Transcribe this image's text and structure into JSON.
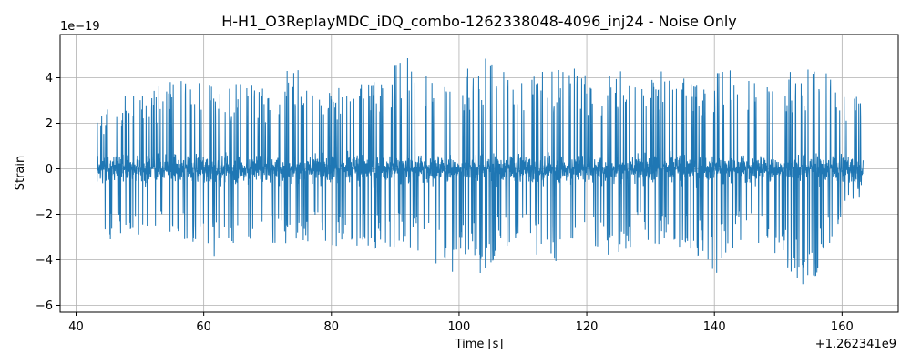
{
  "chart_data": {
    "type": "line",
    "title": "H-H1_O3ReplayMDC_iDQ_combo-1262338048-4096_inj24 - Noise Only",
    "xlabel": "Time [s]",
    "ylabel": "Strain",
    "x_offset_label": "+1.262341e9",
    "y_scale_label": "1e−19",
    "xlim": [
      37.5,
      168.8
    ],
    "ylim": [
      -6.3,
      5.9
    ],
    "x_ticks": [
      40,
      60,
      80,
      100,
      120,
      140,
      160
    ],
    "x_tick_labels": [
      "40",
      "60",
      "80",
      "100",
      "120",
      "140",
      "160"
    ],
    "y_ticks": [
      -6,
      -4,
      -2,
      0,
      2,
      4
    ],
    "y_tick_labels": [
      "−6",
      "−4",
      "−2",
      "0",
      "2",
      "4"
    ],
    "grid": true,
    "color": "#1f77b4",
    "series": [
      {
        "x_start": 43.3,
        "x_end": 163.3,
        "envelope": [
          {
            "x": 43.3,
            "y": 2.2
          },
          {
            "x": 45.0,
            "y": 2.7
          },
          {
            "x": 48.0,
            "y": 3.3
          },
          {
            "x": 52.0,
            "y": 3.5
          },
          {
            "x": 53.7,
            "y": 3.8
          },
          {
            "x": 57.0,
            "y": 3.9
          },
          {
            "x": 60.3,
            "y": 4.7
          },
          {
            "x": 62.0,
            "y": 3.4
          },
          {
            "x": 66.0,
            "y": 4.0
          },
          {
            "x": 70.0,
            "y": 3.6
          },
          {
            "x": 74.0,
            "y": 4.6
          },
          {
            "x": 78.0,
            "y": 3.8
          },
          {
            "x": 82.0,
            "y": 3.5
          },
          {
            "x": 86.0,
            "y": 4.2
          },
          {
            "x": 88.7,
            "y": 4.5
          },
          {
            "x": 92.8,
            "y": 5.0
          },
          {
            "x": 96.0,
            "y": 3.9
          },
          {
            "x": 100.0,
            "y": 4.3
          },
          {
            "x": 104.5,
            "y": 5.0
          },
          {
            "x": 108.0,
            "y": 4.0
          },
          {
            "x": 110.0,
            "y": 4.5
          },
          {
            "x": 115.5,
            "y": 4.5
          },
          {
            "x": 118.0,
            "y": 4.6
          },
          {
            "x": 122.0,
            "y": 3.9
          },
          {
            "x": 126.0,
            "y": 4.5
          },
          {
            "x": 130.0,
            "y": 4.3
          },
          {
            "x": 134.0,
            "y": 4.3
          },
          {
            "x": 138.0,
            "y": 4.1
          },
          {
            "x": 142.0,
            "y": 4.4
          },
          {
            "x": 147.0,
            "y": 3.9
          },
          {
            "x": 150.0,
            "y": 4.3
          },
          {
            "x": 156.0,
            "y": 4.5
          },
          {
            "x": 160.5,
            "y": 3.7
          },
          {
            "x": 163.3,
            "y": 3.4
          }
        ],
        "envelope_low": [
          {
            "x": 43.3,
            "y": -1.0
          },
          {
            "x": 44.0,
            "y": -3.7
          },
          {
            "x": 46.0,
            "y": -3.3
          },
          {
            "x": 48.0,
            "y": -3.2
          },
          {
            "x": 52.0,
            "y": -3.0
          },
          {
            "x": 57.0,
            "y": -3.2
          },
          {
            "x": 60.3,
            "y": -4.4
          },
          {
            "x": 63.0,
            "y": -3.3
          },
          {
            "x": 67.0,
            "y": -3.5
          },
          {
            "x": 72.0,
            "y": -3.3
          },
          {
            "x": 77.0,
            "y": -3.4
          },
          {
            "x": 82.0,
            "y": -3.4
          },
          {
            "x": 86.0,
            "y": -3.6
          },
          {
            "x": 90.0,
            "y": -3.5
          },
          {
            "x": 94.0,
            "y": -3.7
          },
          {
            "x": 98.7,
            "y": -5.0
          },
          {
            "x": 102.0,
            "y": -3.6
          },
          {
            "x": 103.9,
            "y": -5.5
          },
          {
            "x": 106.0,
            "y": -3.5
          },
          {
            "x": 110.0,
            "y": -3.5
          },
          {
            "x": 115.8,
            "y": -4.3
          },
          {
            "x": 118.0,
            "y": -3.4
          },
          {
            "x": 122.0,
            "y": -3.5
          },
          {
            "x": 124.5,
            "y": -4.1
          },
          {
            "x": 128.0,
            "y": -3.4
          },
          {
            "x": 132.0,
            "y": -3.3
          },
          {
            "x": 137.0,
            "y": -3.8
          },
          {
            "x": 140.3,
            "y": -4.7
          },
          {
            "x": 144.0,
            "y": -3.2
          },
          {
            "x": 148.0,
            "y": -3.5
          },
          {
            "x": 154.6,
            "y": -5.7
          },
          {
            "x": 158.0,
            "y": -3.4
          },
          {
            "x": 163.3,
            "y": -1.0
          }
        ],
        "core_amplitude": 1.2
      }
    ]
  }
}
